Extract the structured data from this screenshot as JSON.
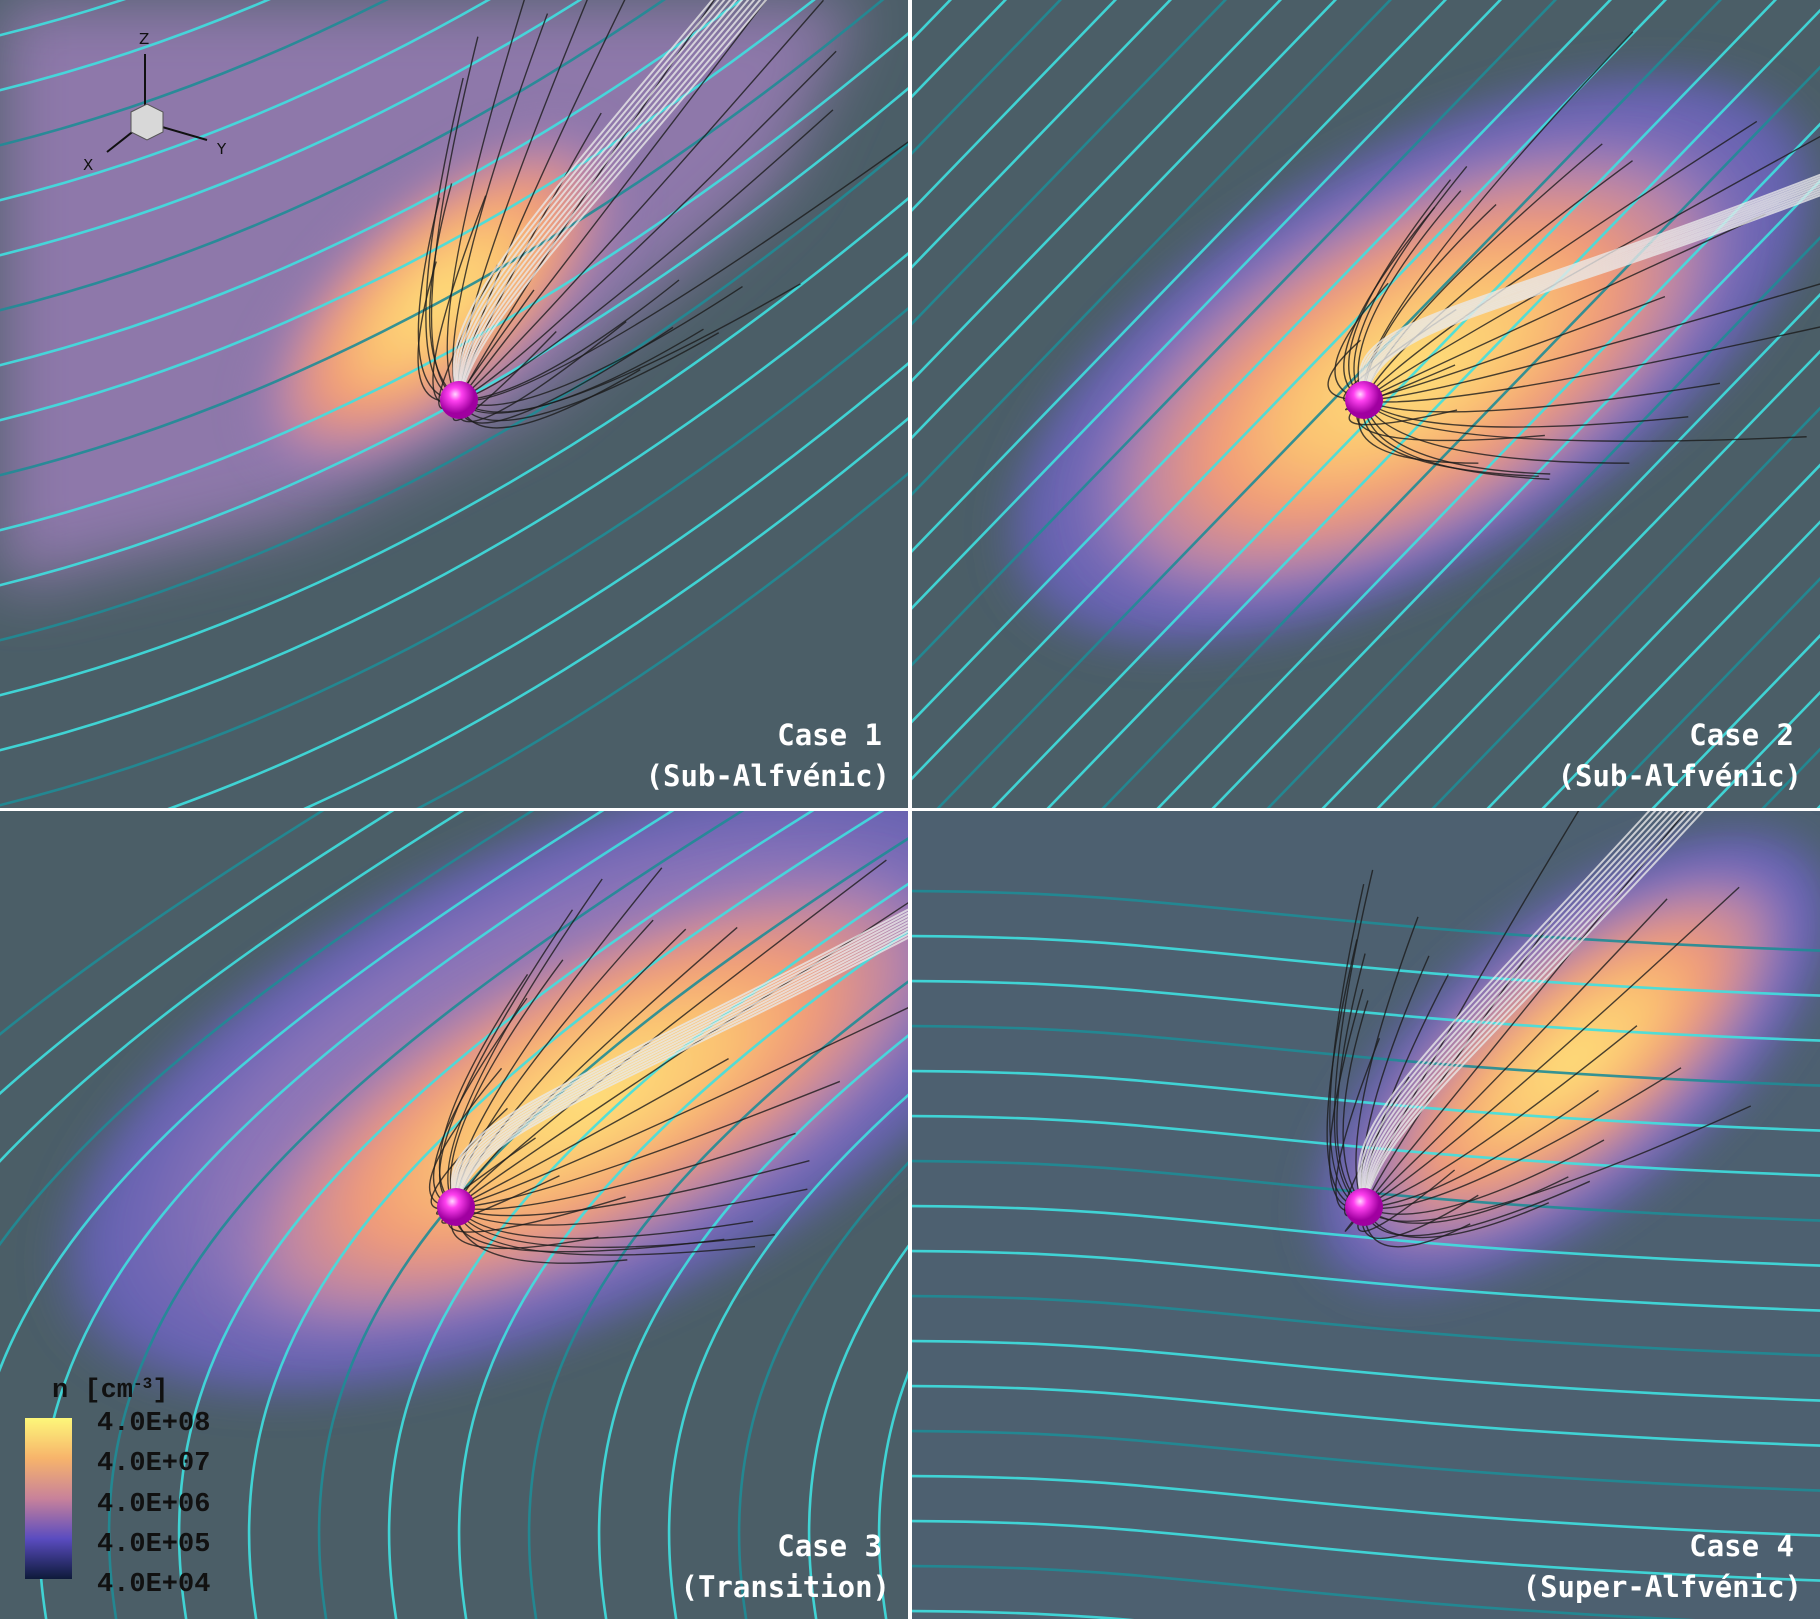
{
  "axes_triad": {
    "x": "X",
    "y": "Y",
    "z": "Z"
  },
  "panels": [
    {
      "case": "Case 1",
      "regime": "(Sub-Alfvénic)"
    },
    {
      "case": "Case 2",
      "regime": "(Sub-Alfvénic)"
    },
    {
      "case": "Case 3",
      "regime": "(Transition)"
    },
    {
      "case": "Case 4",
      "regime": "(Super-Alfvénic)"
    }
  ],
  "colorbar": {
    "title": "n [cm",
    "title_exponent": "-3",
    "title_end": "]",
    "labels": [
      "4.0E+08",
      "4.0E+07",
      "4.0E+06",
      "4.0E+05",
      "4.0E+04"
    ]
  }
}
